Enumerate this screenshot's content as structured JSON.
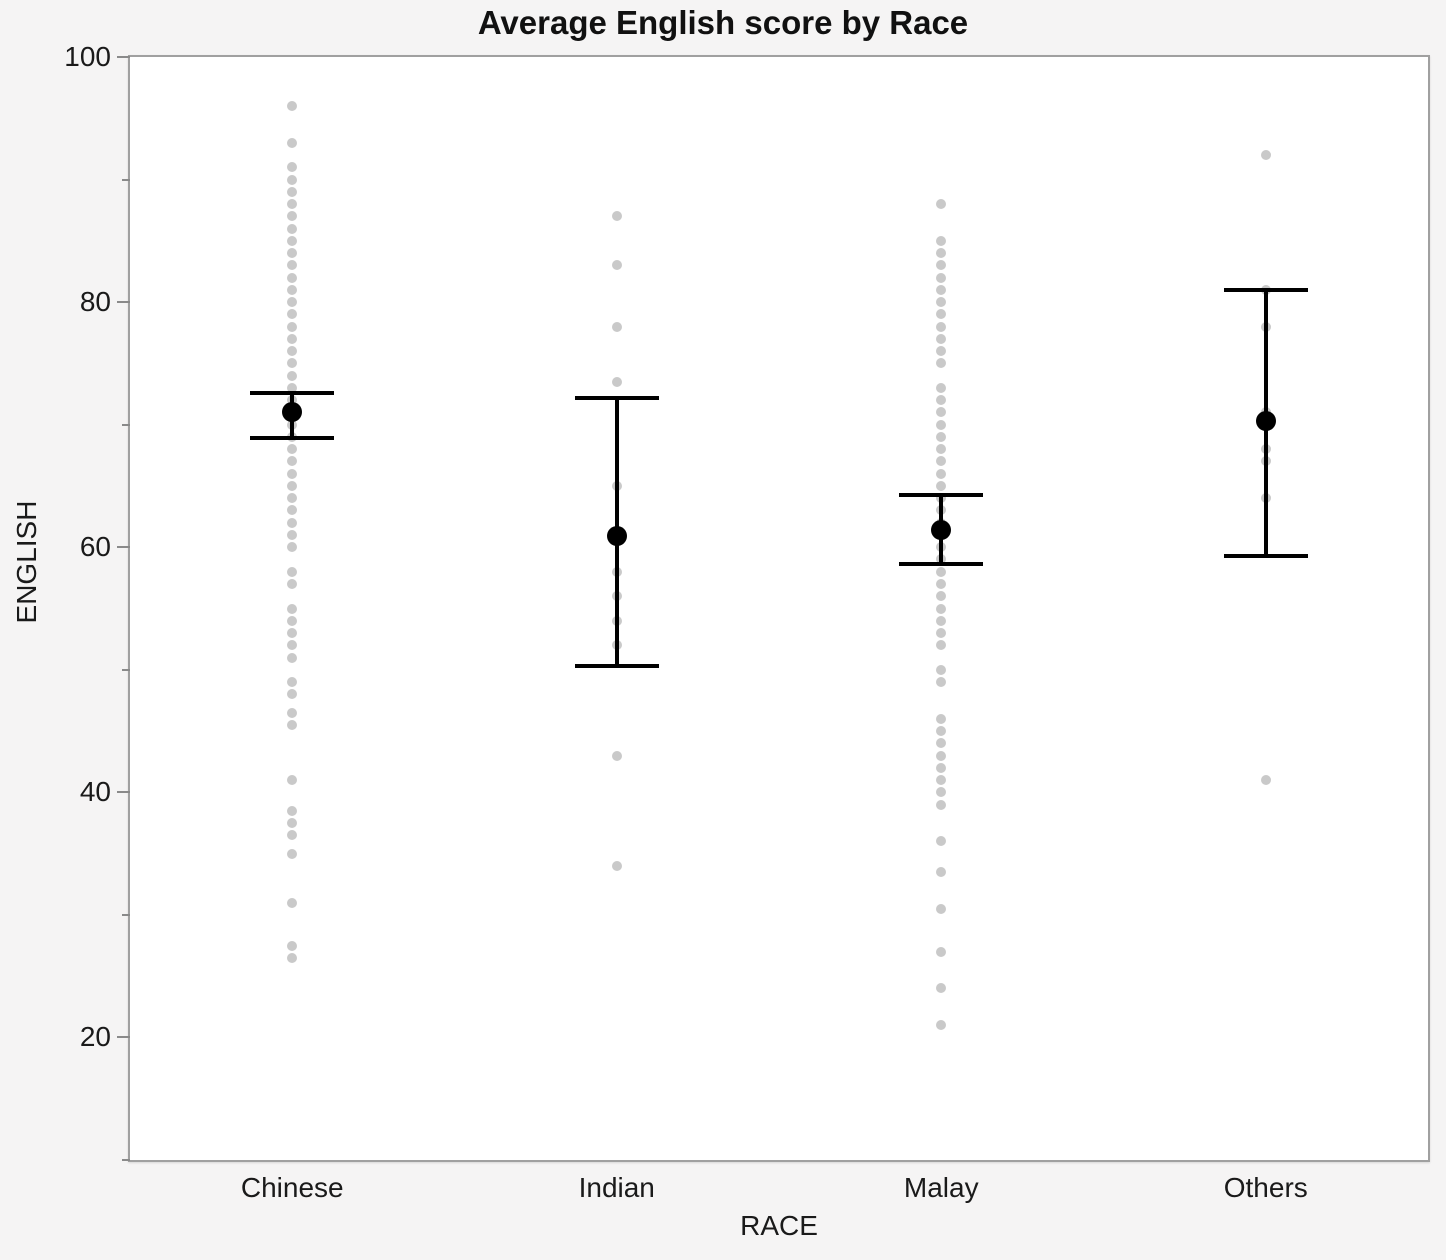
{
  "page": {
    "background": "#f5f4f4",
    "plot_background": "#ffffff",
    "plot_border_color": "#a0a0a0"
  },
  "chart_data": {
    "type": "scatter",
    "subtype": "dot-plot-with-mean-and-error-bars",
    "title": "Average English score by Race",
    "xlabel": "RACE",
    "ylabel": "ENGLISH",
    "ylim": [
      10,
      100
    ],
    "grid": false,
    "legend": null,
    "yticks_major": [
      100,
      80,
      60,
      40,
      20
    ],
    "yticks_minor": [
      90,
      70,
      50,
      30,
      10
    ],
    "categories": [
      "Chinese",
      "Indian",
      "Malay",
      "Others"
    ],
    "style": {
      "point_color": "#c4c4c4",
      "mean_color": "#000000",
      "error_bar_color": "#000000"
    },
    "series": [
      {
        "category": "Chinese",
        "mean": 71.0,
        "ci_low": 68.9,
        "ci_high": 72.6,
        "points": [
          96,
          93,
          91,
          90,
          89,
          88,
          87,
          86,
          85,
          84,
          83,
          82,
          81,
          80,
          79,
          78,
          77,
          76,
          75,
          74,
          73,
          72,
          70,
          69,
          68,
          67,
          66,
          65,
          64,
          63,
          62,
          61,
          60,
          58,
          57,
          55,
          54,
          53,
          52,
          51,
          49,
          48,
          46.5,
          45.5,
          41,
          38.5,
          37.5,
          36.5,
          35,
          31,
          27.5,
          26.5
        ]
      },
      {
        "category": "Indian",
        "mean": 60.9,
        "ci_low": 50.3,
        "ci_high": 72.2,
        "points": [
          87,
          83,
          78,
          73.5,
          65,
          61,
          58,
          56,
          54,
          52,
          43,
          34
        ]
      },
      {
        "category": "Malay",
        "mean": 61.4,
        "ci_low": 58.6,
        "ci_high": 64.3,
        "points": [
          88,
          85,
          84,
          83,
          82,
          81,
          80,
          79,
          78,
          77,
          76,
          75,
          73,
          72,
          71,
          70,
          69,
          68,
          67,
          66,
          65,
          64,
          63,
          62,
          60,
          59,
          58,
          57,
          56,
          55,
          54,
          53,
          52,
          50,
          49,
          46,
          45,
          44,
          43,
          42,
          41,
          40,
          39,
          36,
          33.5,
          30.5,
          27,
          24,
          21
        ]
      },
      {
        "category": "Others",
        "mean": 70.3,
        "ci_low": 59.3,
        "ci_high": 81.0,
        "points": [
          92,
          81,
          78,
          71,
          68,
          67,
          64,
          41
        ]
      }
    ]
  }
}
